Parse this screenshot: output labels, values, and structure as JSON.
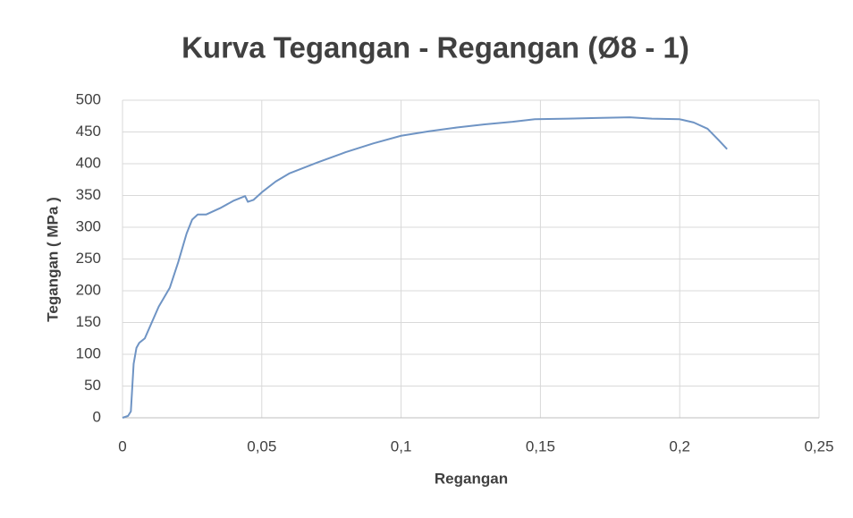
{
  "chart_data": {
    "type": "line",
    "title": "Kurva Tegangan - Regangan (Ø8 - 1)",
    "x_label": "Regangan",
    "y_label": "Tegangan ( MPa )",
    "x": [
      0,
      0.002,
      0.003,
      0.004,
      0.005,
      0.006,
      0.008,
      0.01,
      0.013,
      0.017,
      0.02,
      0.023,
      0.025,
      0.027,
      0.03,
      0.035,
      0.04,
      0.044,
      0.045,
      0.047,
      0.05,
      0.055,
      0.06,
      0.07,
      0.08,
      0.09,
      0.1,
      0.11,
      0.12,
      0.13,
      0.14,
      0.148,
      0.16,
      0.17,
      0.182,
      0.19,
      0.2,
      0.205,
      0.21,
      0.214,
      0.217
    ],
    "values": [
      0,
      3,
      10,
      85,
      110,
      118,
      125,
      145,
      175,
      205,
      245,
      290,
      312,
      320,
      320,
      330,
      342,
      349,
      340,
      343,
      355,
      372,
      385,
      402,
      418,
      432,
      444,
      451,
      457,
      462,
      466,
      470,
      471,
      472,
      473,
      471,
      470,
      465,
      455,
      437,
      423
    ],
    "color": "#6f94c4",
    "xlim": [
      0,
      0.25
    ],
    "xticks": [
      0,
      {
        "value": 0.05,
        "label": "0,05"
      },
      {
        "value": 0.1,
        "label": "0,1"
      },
      {
        "value": 0.15,
        "label": "0,15"
      },
      {
        "value": 0.2,
        "label": "0,2"
      },
      {
        "value": 0.25,
        "label": "0,25"
      }
    ],
    "ylim": [
      0,
      500
    ],
    "yticks": [
      0,
      50,
      100,
      150,
      200,
      250,
      300,
      350,
      400,
      450,
      500
    ],
    "grid": true
  }
}
